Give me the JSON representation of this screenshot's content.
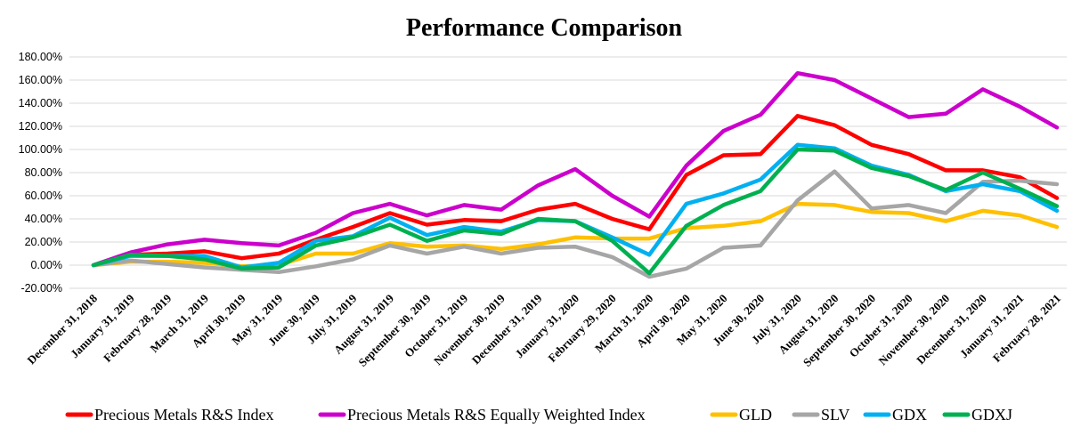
{
  "chart_data": {
    "type": "line",
    "title": "Performance Comparison",
    "xlabel": "",
    "ylabel": "",
    "ylim": [
      -20,
      180
    ],
    "yticks": [
      -20,
      0,
      20,
      40,
      60,
      80,
      100,
      120,
      140,
      160,
      180
    ],
    "ytick_labels": [
      "-20.00%",
      "0.00%",
      "20.00%",
      "40.00%",
      "60.00%",
      "80.00%",
      "100.00%",
      "120.00%",
      "140.00%",
      "160.00%",
      "180.00%"
    ],
    "grid": "horizontal",
    "legend_position": "bottom",
    "categories": [
      "December 31, 2018",
      "January 31, 2019",
      "February 28, 2019",
      "March 31, 2019",
      "April 30, 2019",
      "May 31, 2019",
      "June 30, 2019",
      "July 31, 2019",
      "August 31, 2019",
      "September 30, 2019",
      "October 31, 2019",
      "November 30, 2019",
      "December 31, 2019",
      "January 31, 2020",
      "February 29, 2020",
      "March 31, 2020",
      "April 30, 2020",
      "May 31, 2020",
      "June 30, 2020",
      "July 31, 2020",
      "August 31, 2020",
      "September 30, 2020",
      "October 31, 2020",
      "November 30, 2020",
      "December 31, 2020",
      "January 31, 2021",
      "February 28, 2021"
    ],
    "series": [
      {
        "name": "Precious Metals R&S Index",
        "color": "#ff0000",
        "values": [
          0,
          9,
          10,
          12,
          6,
          10,
          22,
          33,
          45,
          35,
          39,
          38,
          48,
          53,
          40,
          31,
          78,
          95,
          96,
          129,
          121,
          104,
          96,
          82,
          82,
          76,
          58
        ]
      },
      {
        "name": "Precious Metals R&S Equally Weighted Index",
        "color": "#cc00cc",
        "values": [
          0,
          11,
          18,
          22,
          19,
          17,
          28,
          45,
          53,
          43,
          52,
          48,
          69,
          83,
          60,
          42,
          86,
          116,
          130,
          166,
          160,
          144,
          128,
          131,
          152,
          137,
          119
        ]
      },
      {
        "name": "GLD",
        "color": "#ffc000",
        "values": [
          0,
          3,
          3,
          2,
          -1,
          0,
          10,
          10,
          19,
          16,
          17,
          14,
          18,
          24,
          23,
          23,
          32,
          34,
          38,
          53,
          52,
          46,
          45,
          38,
          47,
          43,
          33
        ]
      },
      {
        "name": "SLV",
        "color": "#a6a6a6",
        "values": [
          0,
          4,
          1,
          -2,
          -4,
          -6,
          -1,
          5,
          17,
          10,
          16,
          10,
          15,
          16,
          7,
          -10,
          -3,
          15,
          17,
          56,
          81,
          49,
          52,
          45,
          72,
          73,
          70
        ]
      },
      {
        "name": "GDX",
        "color": "#00b0f0",
        "values": [
          0,
          8,
          8,
          8,
          -2,
          2,
          21,
          25,
          41,
          26,
          33,
          29,
          39,
          38,
          24,
          9,
          53,
          62,
          74,
          104,
          101,
          86,
          78,
          64,
          70,
          64,
          47
        ]
      },
      {
        "name": "GDXJ",
        "color": "#00b050",
        "values": [
          0,
          9,
          8,
          5,
          -3,
          -2,
          17,
          24,
          35,
          21,
          30,
          27,
          40,
          38,
          21,
          -7,
          34,
          52,
          64,
          100,
          99,
          84,
          77,
          65,
          80,
          66,
          51
        ]
      }
    ]
  }
}
